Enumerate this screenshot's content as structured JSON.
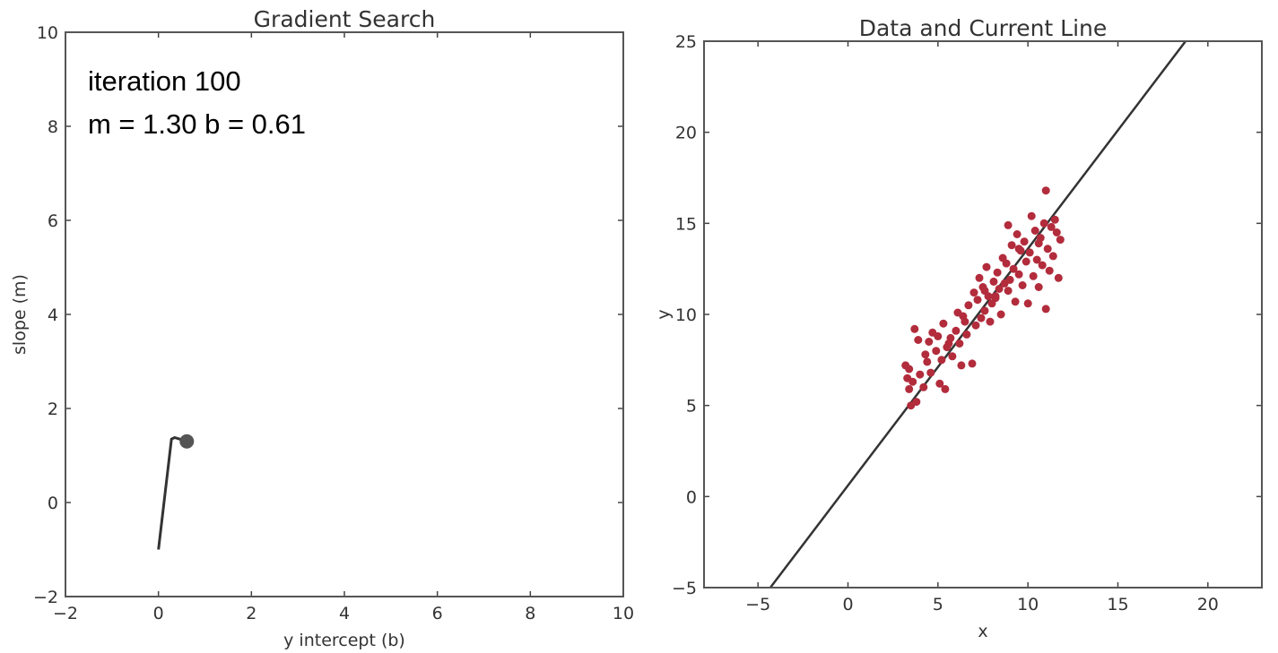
{
  "colors": {
    "path": "#333333",
    "point_fill": "#b22c3c",
    "line": "#333333"
  },
  "chart_data": [
    {
      "type": "line",
      "title": "Gradient Search",
      "xlabel": "y intercept (b)",
      "ylabel": "slope (m)",
      "xlim": [
        -2,
        10
      ],
      "ylim": [
        -2,
        10
      ],
      "xticks": [
        -2,
        0,
        2,
        4,
        6,
        8,
        10
      ],
      "yticks": [
        -2,
        0,
        2,
        4,
        6,
        8,
        10
      ],
      "annotations": [
        "iteration 100",
        "m = 1.30  b = 0.61"
      ],
      "series": [
        {
          "name": "gradient path",
          "x": [
            0.0,
            0.28,
            0.35,
            0.45,
            0.55,
            0.61
          ],
          "y": [
            -1.0,
            1.35,
            1.38,
            1.35,
            1.32,
            1.3
          ]
        }
      ],
      "marker": {
        "x": 0.61,
        "y": 1.3
      }
    },
    {
      "type": "scatter",
      "title": "Data and Current Line",
      "xlabel": "x",
      "ylabel": "y",
      "xlim": [
        -8,
        23
      ],
      "ylim": [
        -5,
        25
      ],
      "xticks": [
        -5,
        0,
        5,
        10,
        15,
        20
      ],
      "yticks": [
        -5,
        0,
        5,
        10,
        15,
        20,
        25
      ],
      "line": {
        "m": 1.3,
        "b": 0.61
      },
      "points": [
        [
          3.2,
          7.2
        ],
        [
          3.3,
          6.5
        ],
        [
          3.4,
          5.9
        ],
        [
          3.5,
          5.0
        ],
        [
          3.6,
          6.3
        ],
        [
          3.4,
          7.0
        ],
        [
          3.7,
          9.2
        ],
        [
          3.9,
          8.6
        ],
        [
          3.8,
          5.2
        ],
        [
          4.0,
          6.7
        ],
        [
          4.2,
          6.0
        ],
        [
          4.3,
          7.8
        ],
        [
          4.5,
          8.5
        ],
        [
          4.6,
          6.8
        ],
        [
          4.7,
          9.0
        ],
        [
          4.9,
          8.0
        ],
        [
          5.0,
          8.8
        ],
        [
          5.1,
          6.2
        ],
        [
          5.2,
          7.5
        ],
        [
          5.3,
          9.5
        ],
        [
          5.4,
          5.9
        ],
        [
          5.5,
          8.2
        ],
        [
          5.7,
          8.7
        ],
        [
          5.8,
          7.7
        ],
        [
          6.0,
          9.1
        ],
        [
          6.1,
          10.1
        ],
        [
          6.2,
          8.4
        ],
        [
          6.3,
          7.2
        ],
        [
          6.5,
          9.6
        ],
        [
          6.6,
          8.9
        ],
        [
          6.7,
          10.5
        ],
        [
          6.9,
          7.3
        ],
        [
          7.0,
          11.2
        ],
        [
          7.1,
          9.4
        ],
        [
          7.2,
          10.8
        ],
        [
          7.3,
          12.0
        ],
        [
          7.4,
          9.8
        ],
        [
          7.5,
          11.5
        ],
        [
          7.6,
          10.2
        ],
        [
          7.7,
          12.6
        ],
        [
          7.8,
          11.0
        ],
        [
          7.9,
          9.6
        ],
        [
          8.0,
          10.6
        ],
        [
          8.1,
          11.8
        ],
        [
          8.2,
          10.9
        ],
        [
          8.3,
          12.3
        ],
        [
          8.4,
          11.4
        ],
        [
          8.5,
          10.0
        ],
        [
          8.6,
          13.1
        ],
        [
          8.7,
          11.7
        ],
        [
          8.8,
          12.8
        ],
        [
          8.9,
          14.9
        ],
        [
          9.0,
          11.9
        ],
        [
          9.1,
          13.8
        ],
        [
          9.2,
          12.5
        ],
        [
          9.3,
          10.7
        ],
        [
          9.4,
          14.4
        ],
        [
          9.5,
          12.2
        ],
        [
          9.6,
          13.5
        ],
        [
          9.7,
          11.6
        ],
        [
          9.8,
          14.0
        ],
        [
          9.9,
          12.9
        ],
        [
          10.0,
          10.6
        ],
        [
          10.1,
          13.4
        ],
        [
          10.2,
          15.4
        ],
        [
          10.3,
          12.1
        ],
        [
          10.4,
          14.6
        ],
        [
          10.5,
          13.0
        ],
        [
          10.6,
          11.5
        ],
        [
          10.7,
          14.2
        ],
        [
          10.8,
          12.7
        ],
        [
          10.9,
          15.0
        ],
        [
          11.0,
          16.8
        ],
        [
          11.1,
          13.6
        ],
        [
          11.2,
          12.4
        ],
        [
          11.3,
          14.8
        ],
        [
          11.4,
          13.2
        ],
        [
          11.5,
          15.2
        ],
        [
          11.6,
          14.5
        ],
        [
          11.7,
          12.0
        ],
        [
          11.8,
          14.1
        ],
        [
          11.0,
          10.3
        ],
        [
          9.5,
          13.6
        ],
        [
          8.2,
          11.0
        ],
        [
          7.6,
          11.3
        ],
        [
          6.4,
          9.9
        ],
        [
          5.6,
          8.4
        ],
        [
          4.4,
          7.4
        ],
        [
          8.9,
          11.3
        ],
        [
          10.6,
          13.9
        ]
      ]
    }
  ]
}
